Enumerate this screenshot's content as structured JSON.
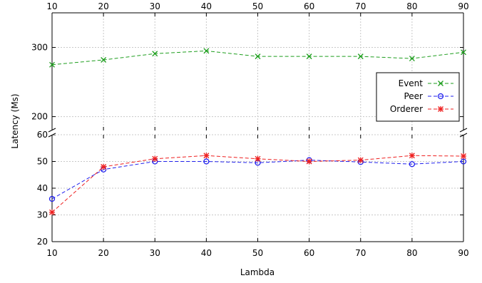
{
  "chart_data": {
    "type": "line",
    "xlabel": "Lambda",
    "ylabel": "Latency (Ms)",
    "x": [
      10,
      20,
      30,
      40,
      50,
      60,
      70,
      80,
      90
    ],
    "xlim": [
      10,
      90
    ],
    "x_ticks": [
      "10",
      "20",
      "30",
      "40",
      "50",
      "60",
      "70",
      "80",
      "90"
    ],
    "panels": {
      "top": {
        "ylim": [
          180,
          350
        ],
        "y_ticks": [
          200,
          300
        ]
      },
      "bottom": {
        "ylim": [
          20,
          60
        ],
        "y_ticks": [
          20,
          30,
          40,
          50,
          60
        ]
      }
    },
    "grid": true,
    "legend_position": "right-top-panel",
    "series": [
      {
        "name": "Event",
        "panel": "top",
        "color": "#1f9e1f",
        "marker": "x",
        "values": [
          275,
          282,
          291,
          295,
          287,
          287,
          287,
          284,
          293
        ]
      },
      {
        "name": "Peer",
        "panel": "bottom",
        "color": "#2020ee",
        "marker": "circle",
        "values": [
          36,
          47,
          50,
          50,
          49.5,
          50.5,
          49.8,
          49,
          50
        ]
      },
      {
        "name": "Orderer",
        "panel": "bottom",
        "color": "#ee2020",
        "marker": "star",
        "values": [
          31,
          48,
          51,
          52.2,
          51,
          50,
          50.5,
          52.2,
          52
        ]
      }
    ]
  }
}
